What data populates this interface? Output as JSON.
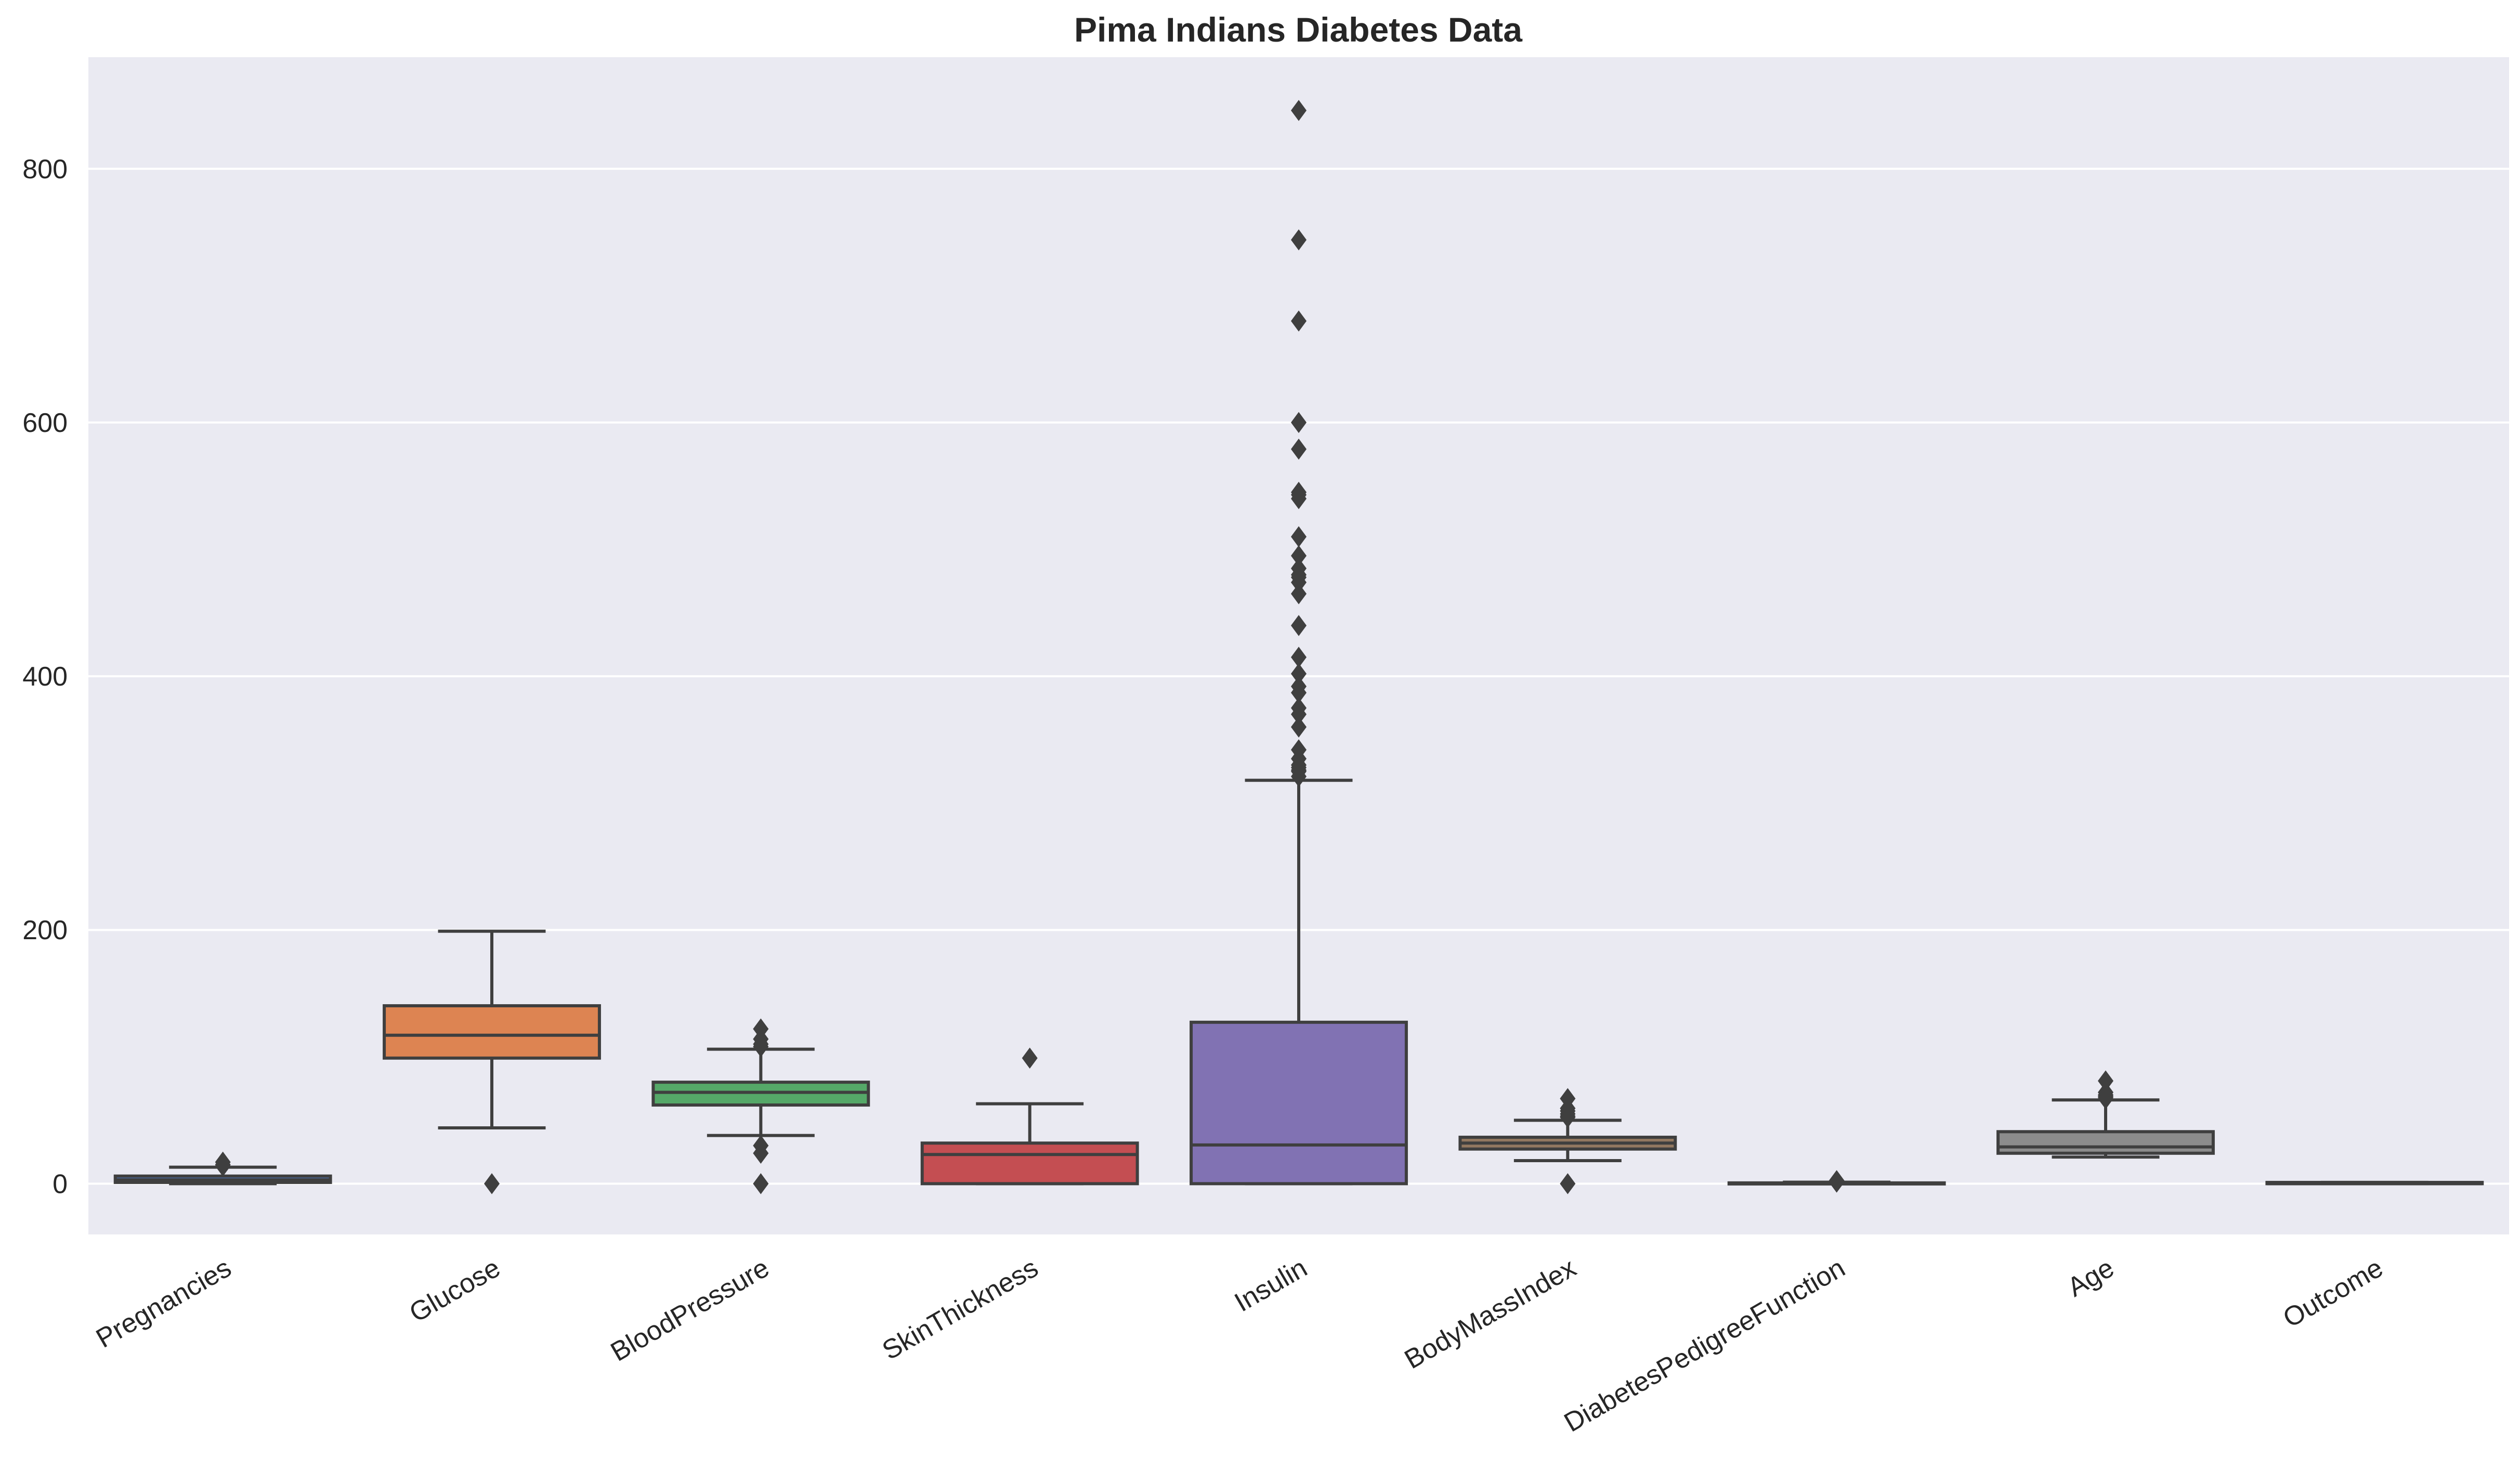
{
  "chart_data": {
    "type": "box",
    "title": "Pima Indians Diabetes Data",
    "xlabel": "",
    "ylabel": "",
    "ylim": [
      -40,
      888
    ],
    "yticks": [
      0,
      200,
      400,
      600,
      800
    ],
    "grid": true,
    "legend": "none",
    "background_color": "#eaeaf2",
    "categories": [
      "Pregnancies",
      "Glucose",
      "BloodPressure",
      "SkinThickness",
      "Insulin",
      "BodyMassIndex",
      "DiabetesPedigreeFunction",
      "Age",
      "Outcome"
    ],
    "series": [
      {
        "category": "Pregnancies",
        "color": "#4c72b0",
        "whislo": 0,
        "q1": 1,
        "median": 3,
        "q3": 6,
        "whishi": 13,
        "fliers": [
          14,
          15,
          17
        ]
      },
      {
        "category": "Glucose",
        "color": "#dd8452",
        "whislo": 44,
        "q1": 99,
        "median": 117,
        "q3": 140.25,
        "whishi": 199,
        "fliers": [
          0
        ]
      },
      {
        "category": "BloodPressure",
        "color": "#55a868",
        "whislo": 38,
        "q1": 62,
        "median": 72,
        "q3": 80,
        "whishi": 106,
        "fliers": [
          0,
          24,
          30,
          108,
          110,
          114,
          122
        ]
      },
      {
        "category": "SkinThickness",
        "color": "#c44e52",
        "whislo": 0,
        "q1": 0,
        "median": 23,
        "q3": 32,
        "whishi": 63,
        "fliers": [
          99
        ]
      },
      {
        "category": "Insulin",
        "color": "#8172b3",
        "whislo": 0,
        "q1": 0,
        "median": 30.5,
        "q3": 127.25,
        "whishi": 318,
        "fliers": [
          321,
          325,
          326,
          328,
          330,
          335,
          342,
          360,
          370,
          375,
          387,
          392,
          402,
          415,
          440,
          465,
          474,
          478,
          480,
          485,
          495,
          510,
          540,
          543,
          545,
          579,
          600,
          680,
          744,
          846
        ]
      },
      {
        "category": "BodyMassIndex",
        "color": "#937860",
        "whislo": 18.2,
        "q1": 27.3,
        "median": 32,
        "q3": 36.6,
        "whishi": 50,
        "fliers": [
          0,
          52.3,
          53.2,
          55,
          57.3,
          59.4,
          67.1
        ]
      },
      {
        "category": "DiabetesPedigreeFunction",
        "color": "#da8bc3",
        "whislo": 0.078,
        "q1": 0.244,
        "median": 0.372,
        "q3": 0.626,
        "whishi": 1.191,
        "fliers": [
          1.22,
          1.39,
          1.6,
          1.89,
          2.14,
          2.29,
          2.42
        ]
      },
      {
        "category": "Age",
        "color": "#8c8c8c",
        "whislo": 21,
        "q1": 24,
        "median": 29,
        "q3": 41,
        "whishi": 66,
        "fliers": [
          67,
          68,
          69,
          70,
          72,
          81
        ]
      },
      {
        "category": "Outcome",
        "color": "#ccb974",
        "whislo": 0,
        "q1": 0,
        "median": 0,
        "q3": 1,
        "whishi": 1,
        "fliers": []
      }
    ]
  }
}
